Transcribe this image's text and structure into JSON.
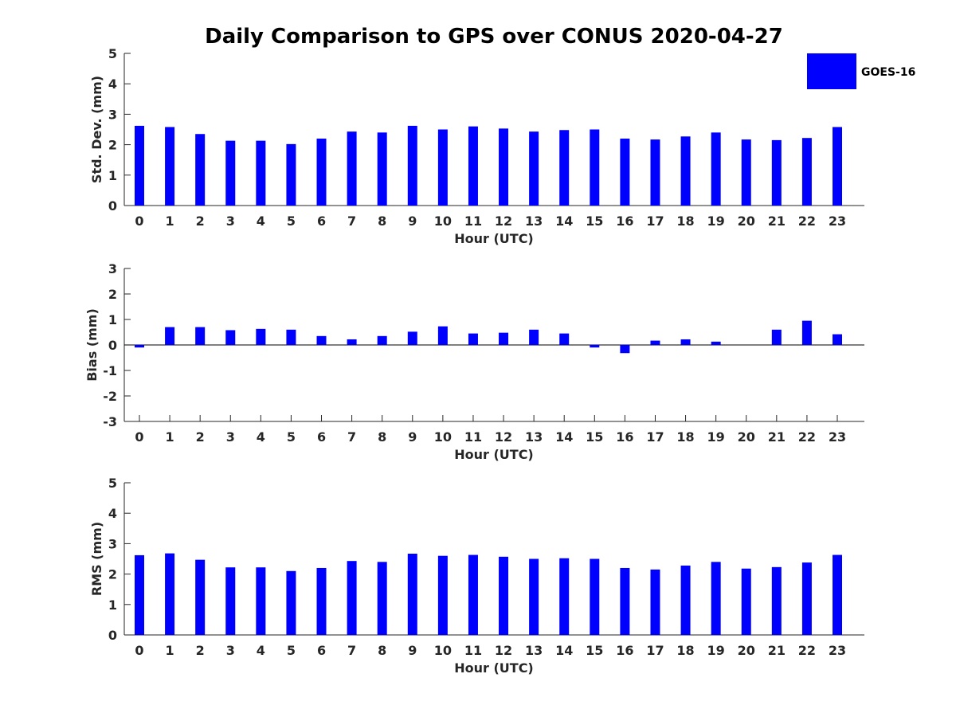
{
  "figure": {
    "title": "Daily Comparison to GPS over CONUS 2020-04-27",
    "bar_color": "#0000ff",
    "legend": {
      "label": "GOES-16",
      "placement": "top-right"
    }
  },
  "chart_data": [
    {
      "type": "bar",
      "name": "std-dev",
      "xlabel": "Hour (UTC)",
      "ylabel": "Std. Dev. (mm)",
      "ylim": [
        0,
        5
      ],
      "yticks": [
        0,
        1,
        2,
        3,
        4,
        5
      ],
      "categories": [
        "0",
        "1",
        "2",
        "3",
        "4",
        "5",
        "6",
        "7",
        "8",
        "9",
        "10",
        "11",
        "12",
        "13",
        "14",
        "15",
        "16",
        "17",
        "18",
        "19",
        "20",
        "21",
        "22",
        "23"
      ],
      "series": [
        {
          "name": "GOES-16",
          "values": [
            2.62,
            2.58,
            2.35,
            2.13,
            2.13,
            2.02,
            2.2,
            2.43,
            2.4,
            2.62,
            2.5,
            2.6,
            2.53,
            2.43,
            2.48,
            2.5,
            2.2,
            2.17,
            2.27,
            2.4,
            2.17,
            2.15,
            2.22,
            2.58
          ]
        }
      ]
    },
    {
      "type": "bar",
      "name": "bias",
      "xlabel": "Hour (UTC)",
      "ylabel": "Bias (mm)",
      "ylim": [
        -3,
        3
      ],
      "yticks": [
        -3,
        -2,
        -1,
        0,
        1,
        2,
        3
      ],
      "categories": [
        "0",
        "1",
        "2",
        "3",
        "4",
        "5",
        "6",
        "7",
        "8",
        "9",
        "10",
        "11",
        "12",
        "13",
        "14",
        "15",
        "16",
        "17",
        "18",
        "19",
        "20",
        "21",
        "22",
        "23"
      ],
      "series": [
        {
          "name": "GOES-16",
          "values": [
            -0.1,
            0.7,
            0.7,
            0.58,
            0.63,
            0.6,
            0.35,
            0.22,
            0.35,
            0.52,
            0.73,
            0.45,
            0.48,
            0.6,
            0.45,
            -0.1,
            -0.32,
            0.17,
            0.22,
            0.13,
            0.0,
            0.6,
            0.95,
            0.42
          ]
        }
      ]
    },
    {
      "type": "bar",
      "name": "rms",
      "xlabel": "Hour (UTC)",
      "ylabel": "RMS (mm)",
      "ylim": [
        0,
        5
      ],
      "yticks": [
        0,
        1,
        2,
        3,
        4,
        5
      ],
      "categories": [
        "0",
        "1",
        "2",
        "3",
        "4",
        "5",
        "6",
        "7",
        "8",
        "9",
        "10",
        "11",
        "12",
        "13",
        "14",
        "15",
        "16",
        "17",
        "18",
        "19",
        "20",
        "21",
        "22",
        "23"
      ],
      "series": [
        {
          "name": "GOES-16",
          "values": [
            2.62,
            2.68,
            2.47,
            2.22,
            2.22,
            2.1,
            2.2,
            2.43,
            2.4,
            2.67,
            2.6,
            2.63,
            2.57,
            2.5,
            2.52,
            2.5,
            2.2,
            2.15,
            2.28,
            2.4,
            2.18,
            2.23,
            2.38,
            2.63
          ]
        }
      ]
    }
  ]
}
